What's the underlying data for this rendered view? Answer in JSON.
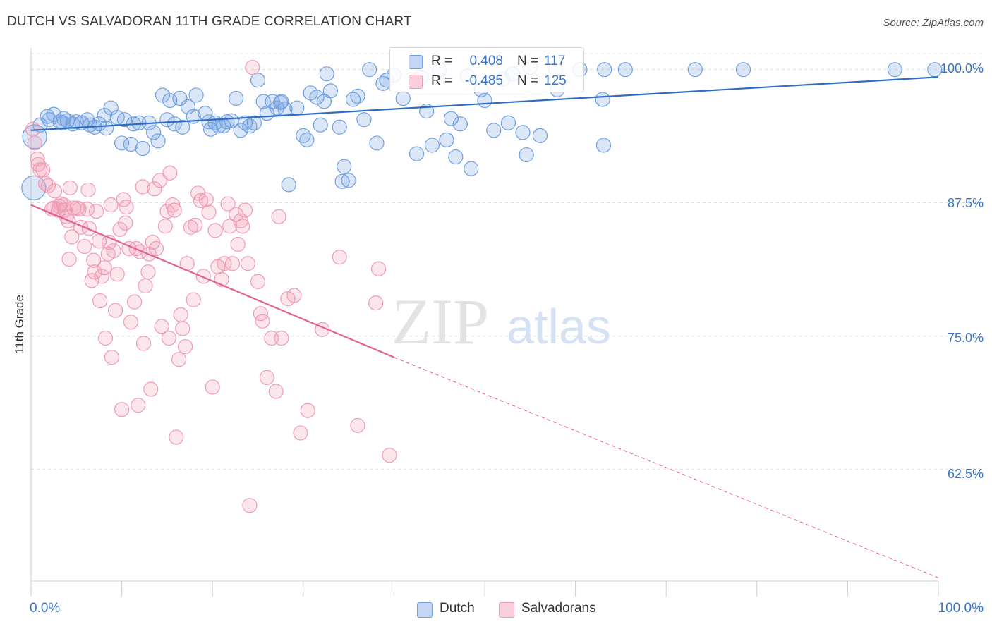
{
  "title": "DUTCH VS SALVADORAN 11TH GRADE CORRELATION CHART",
  "source": "Source: ZipAtlas.com",
  "watermark": {
    "zip": "ZIP",
    "atlas": "atlas"
  },
  "chart_data": {
    "type": "scatter",
    "xlabel": "",
    "ylabel": "11th Grade",
    "xlim": [
      0,
      100
    ],
    "ylim": [
      52,
      101.5
    ],
    "x_tick_labels": [
      "0.0%",
      "100.0%"
    ],
    "y_ticks": [
      62.5,
      75.0,
      87.5,
      100.0
    ],
    "y_tick_labels": [
      "62.5%",
      "75.0%",
      "87.5%",
      "100.0%"
    ],
    "grid": true,
    "legend_stats": [
      {
        "series": "Dutch",
        "r_label": "R =",
        "r": "0.408",
        "n_label": "N =",
        "n": "117",
        "color": "#6f9fe0"
      },
      {
        "series": "Salvadorans",
        "r_label": "R =",
        "r": "-0.485",
        "n_label": "N =",
        "n": "125",
        "color": "#f09ab5"
      }
    ],
    "series": [
      {
        "name": "Dutch",
        "color": "#6f9fe0",
        "line_color": "#2f6cc4",
        "trend": {
          "x0": 0,
          "y0": 94.3,
          "x1": 100,
          "y1": 99.3
        },
        "points": [
          [
            0.3,
            88.9
          ],
          [
            0.4,
            93.7
          ],
          [
            1.0,
            94.8
          ],
          [
            1.8,
            95.6
          ],
          [
            2.0,
            95.3
          ],
          [
            2.5,
            95.8
          ],
          [
            3.2,
            95.1
          ],
          [
            3.6,
            95.4
          ],
          [
            3.5,
            95.0
          ],
          [
            4.0,
            95.2
          ],
          [
            4.6,
            94.9
          ],
          [
            5.0,
            95.1
          ],
          [
            5.6,
            95.0
          ],
          [
            6.2,
            95.3
          ],
          [
            6.5,
            94.8
          ],
          [
            7.0,
            94.6
          ],
          [
            7.5,
            94.9
          ],
          [
            8.1,
            95.7
          ],
          [
            8.3,
            94.5
          ],
          [
            8.8,
            96.4
          ],
          [
            9.5,
            95.5
          ],
          [
            10.0,
            93.1
          ],
          [
            10.3,
            95.3
          ],
          [
            11.0,
            93.0
          ],
          [
            11.3,
            94.9
          ],
          [
            11.9,
            95.0
          ],
          [
            12.3,
            92.6
          ],
          [
            13.0,
            95.0
          ],
          [
            13.5,
            94.1
          ],
          [
            14.0,
            93.3
          ],
          [
            14.5,
            97.6
          ],
          [
            15.0,
            95.3
          ],
          [
            15.3,
            97.1
          ],
          [
            15.8,
            94.9
          ],
          [
            16.4,
            97.3
          ],
          [
            16.7,
            94.6
          ],
          [
            17.3,
            96.5
          ],
          [
            17.9,
            95.6
          ],
          [
            18.2,
            97.6
          ],
          [
            19.2,
            95.9
          ],
          [
            19.6,
            95.1
          ],
          [
            19.8,
            94.4
          ],
          [
            20.3,
            95.0
          ],
          [
            20.7,
            94.7
          ],
          [
            21.2,
            94.7
          ],
          [
            21.6,
            95.1
          ],
          [
            22.1,
            95.2
          ],
          [
            22.6,
            97.3
          ],
          [
            23.1,
            94.3
          ],
          [
            23.6,
            95.0
          ],
          [
            24.1,
            94.7
          ],
          [
            24.6,
            95.0
          ],
          [
            25.0,
            99.0
          ],
          [
            25.6,
            97.0
          ],
          [
            26.0,
            95.9
          ],
          [
            26.6,
            97.0
          ],
          [
            27.1,
            96.4
          ],
          [
            27.5,
            96.9
          ],
          [
            27.6,
            97.0
          ],
          [
            28.0,
            96.3
          ],
          [
            28.4,
            89.2
          ],
          [
            29.3,
            96.4
          ],
          [
            30.0,
            93.8
          ],
          [
            30.4,
            93.4
          ],
          [
            30.8,
            97.8
          ],
          [
            31.5,
            97.4
          ],
          [
            31.9,
            94.8
          ],
          [
            32.3,
            97.0
          ],
          [
            32.6,
            99.6
          ],
          [
            33.0,
            98.0
          ],
          [
            34.0,
            94.6
          ],
          [
            34.3,
            89.5
          ],
          [
            34.5,
            90.9
          ],
          [
            35.0,
            89.6
          ],
          [
            35.5,
            97.2
          ],
          [
            36.0,
            97.5
          ],
          [
            36.7,
            95.3
          ],
          [
            37.3,
            100.0
          ],
          [
            38.1,
            93.1
          ],
          [
            38.8,
            98.7
          ],
          [
            39.2,
            99.0
          ],
          [
            40.0,
            99.5
          ],
          [
            41.0,
            97.3
          ],
          [
            42.5,
            92.1
          ],
          [
            43.0,
            99.3
          ],
          [
            43.6,
            96.1
          ],
          [
            44.2,
            92.9
          ],
          [
            45.0,
            100.0
          ],
          [
            45.8,
            93.4
          ],
          [
            46.3,
            95.4
          ],
          [
            46.8,
            91.8
          ],
          [
            47.3,
            94.9
          ],
          [
            48.1,
            99.4
          ],
          [
            48.5,
            90.7
          ],
          [
            49.6,
            98.1
          ],
          [
            50.0,
            97.1
          ],
          [
            51.0,
            94.3
          ],
          [
            52.0,
            99.1
          ],
          [
            52.6,
            95.0
          ],
          [
            53.1,
            99.6
          ],
          [
            54.2,
            94.1
          ],
          [
            54.6,
            92.0
          ],
          [
            55.0,
            100.2
          ],
          [
            56.1,
            93.8
          ],
          [
            57.8,
            100.0
          ],
          [
            58.0,
            98.1
          ],
          [
            60.5,
            100.0
          ],
          [
            63.0,
            97.2
          ],
          [
            63.1,
            92.9
          ],
          [
            63.2,
            100.0
          ],
          [
            65.5,
            100.0
          ],
          [
            73.2,
            100.0
          ],
          [
            78.5,
            100.0
          ],
          [
            95.2,
            100.0
          ],
          [
            99.6,
            100.0
          ]
        ]
      },
      {
        "name": "Salvadorans",
        "color": "#f09ab5",
        "line_color": "#e2628f",
        "trend": {
          "x0": 0,
          "y0": 87.3,
          "x1": 40,
          "y1": 73.0
        },
        "trend_extension": {
          "x0": 40,
          "y0": 73.0,
          "x1": 100,
          "y1": 52.3
        },
        "points": [
          [
            0.2,
            94.4
          ],
          [
            0.4,
            93.1
          ],
          [
            0.7,
            91.6
          ],
          [
            0.8,
            91.1
          ],
          [
            1.0,
            90.6
          ],
          [
            1.3,
            90.6
          ],
          [
            1.6,
            89.3
          ],
          [
            1.9,
            89.1
          ],
          [
            2.3,
            86.9
          ],
          [
            2.5,
            87.0
          ],
          [
            2.6,
            88.6
          ],
          [
            3.0,
            86.8
          ],
          [
            3.1,
            87.2
          ],
          [
            3.3,
            87.4
          ],
          [
            3.6,
            87.3
          ],
          [
            3.7,
            86.8
          ],
          [
            3.9,
            86.2
          ],
          [
            4.1,
            85.8
          ],
          [
            4.2,
            82.2
          ],
          [
            4.3,
            88.9
          ],
          [
            4.5,
            84.3
          ],
          [
            4.7,
            87.0
          ],
          [
            5.1,
            87.0
          ],
          [
            5.3,
            86.9
          ],
          [
            5.5,
            85.2
          ],
          [
            5.9,
            83.4
          ],
          [
            6.2,
            86.9
          ],
          [
            6.3,
            88.7
          ],
          [
            6.4,
            85.1
          ],
          [
            6.7,
            80.2
          ],
          [
            6.9,
            82.1
          ],
          [
            7.0,
            81.0
          ],
          [
            7.2,
            86.7
          ],
          [
            7.5,
            83.9
          ],
          [
            7.6,
            78.3
          ],
          [
            7.8,
            80.6
          ],
          [
            8.1,
            81.4
          ],
          [
            8.2,
            74.8
          ],
          [
            8.5,
            82.7
          ],
          [
            8.6,
            83.8
          ],
          [
            8.8,
            87.3
          ],
          [
            8.9,
            73.0
          ],
          [
            9.1,
            83.0
          ],
          [
            9.3,
            77.4
          ],
          [
            9.5,
            80.8
          ],
          [
            9.8,
            85.0
          ],
          [
            10.0,
            68.1
          ],
          [
            10.2,
            87.8
          ],
          [
            10.4,
            85.6
          ],
          [
            10.5,
            87.1
          ],
          [
            10.8,
            83.2
          ],
          [
            11.0,
            76.3
          ],
          [
            11.4,
            78.2
          ],
          [
            11.6,
            83.2
          ],
          [
            11.8,
            68.5
          ],
          [
            12.0,
            82.9
          ],
          [
            12.3,
            89.0
          ],
          [
            12.4,
            74.3
          ],
          [
            12.6,
            79.7
          ],
          [
            12.9,
            81.0
          ],
          [
            13.0,
            82.7
          ],
          [
            13.2,
            70.0
          ],
          [
            13.4,
            83.8
          ],
          [
            13.6,
            88.8
          ],
          [
            13.8,
            83.2
          ],
          [
            14.2,
            89.6
          ],
          [
            14.4,
            75.9
          ],
          [
            14.8,
            85.3
          ],
          [
            15.0,
            86.7
          ],
          [
            15.2,
            74.8
          ],
          [
            15.3,
            90.3
          ],
          [
            15.6,
            87.3
          ],
          [
            15.8,
            86.8
          ],
          [
            16.0,
            65.5
          ],
          [
            16.3,
            72.8
          ],
          [
            16.5,
            77.0
          ],
          [
            16.7,
            75.7
          ],
          [
            17.0,
            74.0
          ],
          [
            17.2,
            81.8
          ],
          [
            17.6,
            85.2
          ],
          [
            17.9,
            78.4
          ],
          [
            18.1,
            85.4
          ],
          [
            18.4,
            88.4
          ],
          [
            18.7,
            87.7
          ],
          [
            19.0,
            80.6
          ],
          [
            19.3,
            87.8
          ],
          [
            19.6,
            86.6
          ],
          [
            20.0,
            70.2
          ],
          [
            20.3,
            84.9
          ],
          [
            20.6,
            81.5
          ],
          [
            21.0,
            80.3
          ],
          [
            21.3,
            81.8
          ],
          [
            21.7,
            87.4
          ],
          [
            21.9,
            85.3
          ],
          [
            22.2,
            81.8
          ],
          [
            22.6,
            86.4
          ],
          [
            22.8,
            83.6
          ],
          [
            23.1,
            85.8
          ],
          [
            23.3,
            85.3
          ],
          [
            23.6,
            86.8
          ],
          [
            23.9,
            81.8
          ],
          [
            24.1,
            59.1
          ],
          [
            24.4,
            100.2
          ],
          [
            25.0,
            80.1
          ],
          [
            25.3,
            77.1
          ],
          [
            25.5,
            76.4
          ],
          [
            26.0,
            71.1
          ],
          [
            26.5,
            74.8
          ],
          [
            27.0,
            69.8
          ],
          [
            27.3,
            86.2
          ],
          [
            27.6,
            74.8
          ],
          [
            28.3,
            78.5
          ],
          [
            29.0,
            78.8
          ],
          [
            29.7,
            65.9
          ],
          [
            30.5,
            68.0
          ],
          [
            32.1,
            75.6
          ],
          [
            34.0,
            82.4
          ],
          [
            36.0,
            66.6
          ],
          [
            38.0,
            78.1
          ],
          [
            38.3,
            81.3
          ],
          [
            39.5,
            63.8
          ]
        ]
      }
    ]
  },
  "legend": {
    "items": [
      {
        "label": "Dutch",
        "color": "#6f9fe0"
      },
      {
        "label": "Salvadorans",
        "color": "#f09ab5"
      }
    ]
  }
}
